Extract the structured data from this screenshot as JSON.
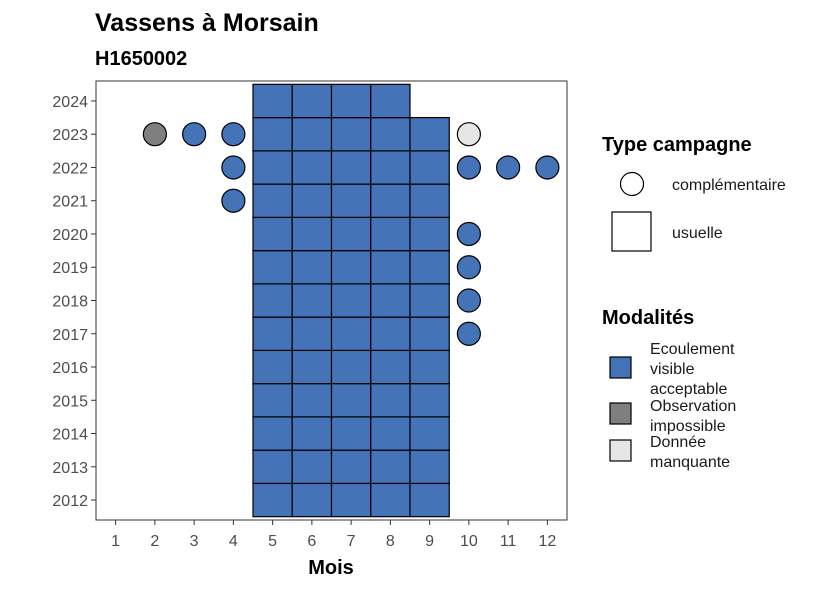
{
  "chart_data": {
    "type": "heatmap",
    "title": "Vassens à Morsain",
    "subtitle": "H1650002",
    "xlabel": "Mois",
    "ylabel": "",
    "x_ticks": [
      1,
      2,
      3,
      4,
      5,
      6,
      7,
      8,
      9,
      10,
      11,
      12
    ],
    "y_ticks": [
      2012,
      2013,
      2014,
      2015,
      2016,
      2017,
      2018,
      2019,
      2020,
      2021,
      2022,
      2023,
      2024
    ],
    "xlim": [
      0.5,
      12.5
    ],
    "ylim": [
      2011.4,
      2024.6
    ],
    "grid": false,
    "legend_position": "right",
    "colors": {
      "ecoulement_visible_acceptable": "#4573B8",
      "observation_impossible": "#7F7F7F",
      "donnee_manquante": "#E6E6E6",
      "border": "#000000"
    },
    "legends": {
      "type_campagne": {
        "title": "Type campagne",
        "items": [
          {
            "label": "complémentaire",
            "shape": "circle"
          },
          {
            "label": "usuelle",
            "shape": "square"
          }
        ]
      },
      "modalites": {
        "title": "Modalités",
        "items": [
          {
            "key": "ecoulement_visible_acceptable",
            "lines": [
              "Ecoulement",
              "visible",
              "acceptable"
            ]
          },
          {
            "key": "observation_impossible",
            "lines": [
              "Observation",
              "impossible"
            ]
          },
          {
            "key": "donnee_manquante",
            "lines": [
              "Donnée",
              "manquante"
            ]
          }
        ]
      }
    },
    "usuelle": [
      {
        "year": 2012,
        "months": [
          5,
          6,
          7,
          8,
          9
        ],
        "modalite": "ecoulement_visible_acceptable"
      },
      {
        "year": 2013,
        "months": [
          5,
          6,
          7,
          8,
          9
        ],
        "modalite": "ecoulement_visible_acceptable"
      },
      {
        "year": 2014,
        "months": [
          5,
          6,
          7,
          8,
          9
        ],
        "modalite": "ecoulement_visible_acceptable"
      },
      {
        "year": 2015,
        "months": [
          5,
          6,
          7,
          8,
          9
        ],
        "modalite": "ecoulement_visible_acceptable"
      },
      {
        "year": 2016,
        "months": [
          5,
          6,
          7,
          8,
          9
        ],
        "modalite": "ecoulement_visible_acceptable"
      },
      {
        "year": 2017,
        "months": [
          5,
          6,
          7,
          8,
          9
        ],
        "modalite": "ecoulement_visible_acceptable"
      },
      {
        "year": 2018,
        "months": [
          5,
          6,
          7,
          8,
          9
        ],
        "modalite": "ecoulement_visible_acceptable"
      },
      {
        "year": 2019,
        "months": [
          5,
          6,
          7,
          8,
          9
        ],
        "modalite": "ecoulement_visible_acceptable"
      },
      {
        "year": 2020,
        "months": [
          5,
          6,
          7,
          8,
          9
        ],
        "modalite": "ecoulement_visible_acceptable"
      },
      {
        "year": 2021,
        "months": [
          5,
          6,
          7,
          8,
          9
        ],
        "modalite": "ecoulement_visible_acceptable"
      },
      {
        "year": 2022,
        "months": [
          5,
          6,
          7,
          8,
          9
        ],
        "modalite": "ecoulement_visible_acceptable"
      },
      {
        "year": 2023,
        "months": [
          5,
          6,
          7,
          8,
          9
        ],
        "modalite": "ecoulement_visible_acceptable"
      },
      {
        "year": 2024,
        "months": [
          5,
          6,
          7,
          8
        ],
        "modalite": "ecoulement_visible_acceptable"
      }
    ],
    "complementaire": [
      {
        "year": 2023,
        "month": 2,
        "modalite": "observation_impossible"
      },
      {
        "year": 2023,
        "month": 3,
        "modalite": "ecoulement_visible_acceptable"
      },
      {
        "year": 2023,
        "month": 4,
        "modalite": "ecoulement_visible_acceptable"
      },
      {
        "year": 2023,
        "month": 10,
        "modalite": "donnee_manquante"
      },
      {
        "year": 2022,
        "month": 4,
        "modalite": "ecoulement_visible_acceptable"
      },
      {
        "year": 2022,
        "month": 10,
        "modalite": "ecoulement_visible_acceptable"
      },
      {
        "year": 2022,
        "month": 11,
        "modalite": "ecoulement_visible_acceptable"
      },
      {
        "year": 2022,
        "month": 12,
        "modalite": "ecoulement_visible_acceptable"
      },
      {
        "year": 2021,
        "month": 4,
        "modalite": "ecoulement_visible_acceptable"
      },
      {
        "year": 2020,
        "month": 10,
        "modalite": "ecoulement_visible_acceptable"
      },
      {
        "year": 2019,
        "month": 10,
        "modalite": "ecoulement_visible_acceptable"
      },
      {
        "year": 2018,
        "month": 10,
        "modalite": "ecoulement_visible_acceptable"
      },
      {
        "year": 2017,
        "month": 10,
        "modalite": "ecoulement_visible_acceptable"
      }
    ]
  }
}
